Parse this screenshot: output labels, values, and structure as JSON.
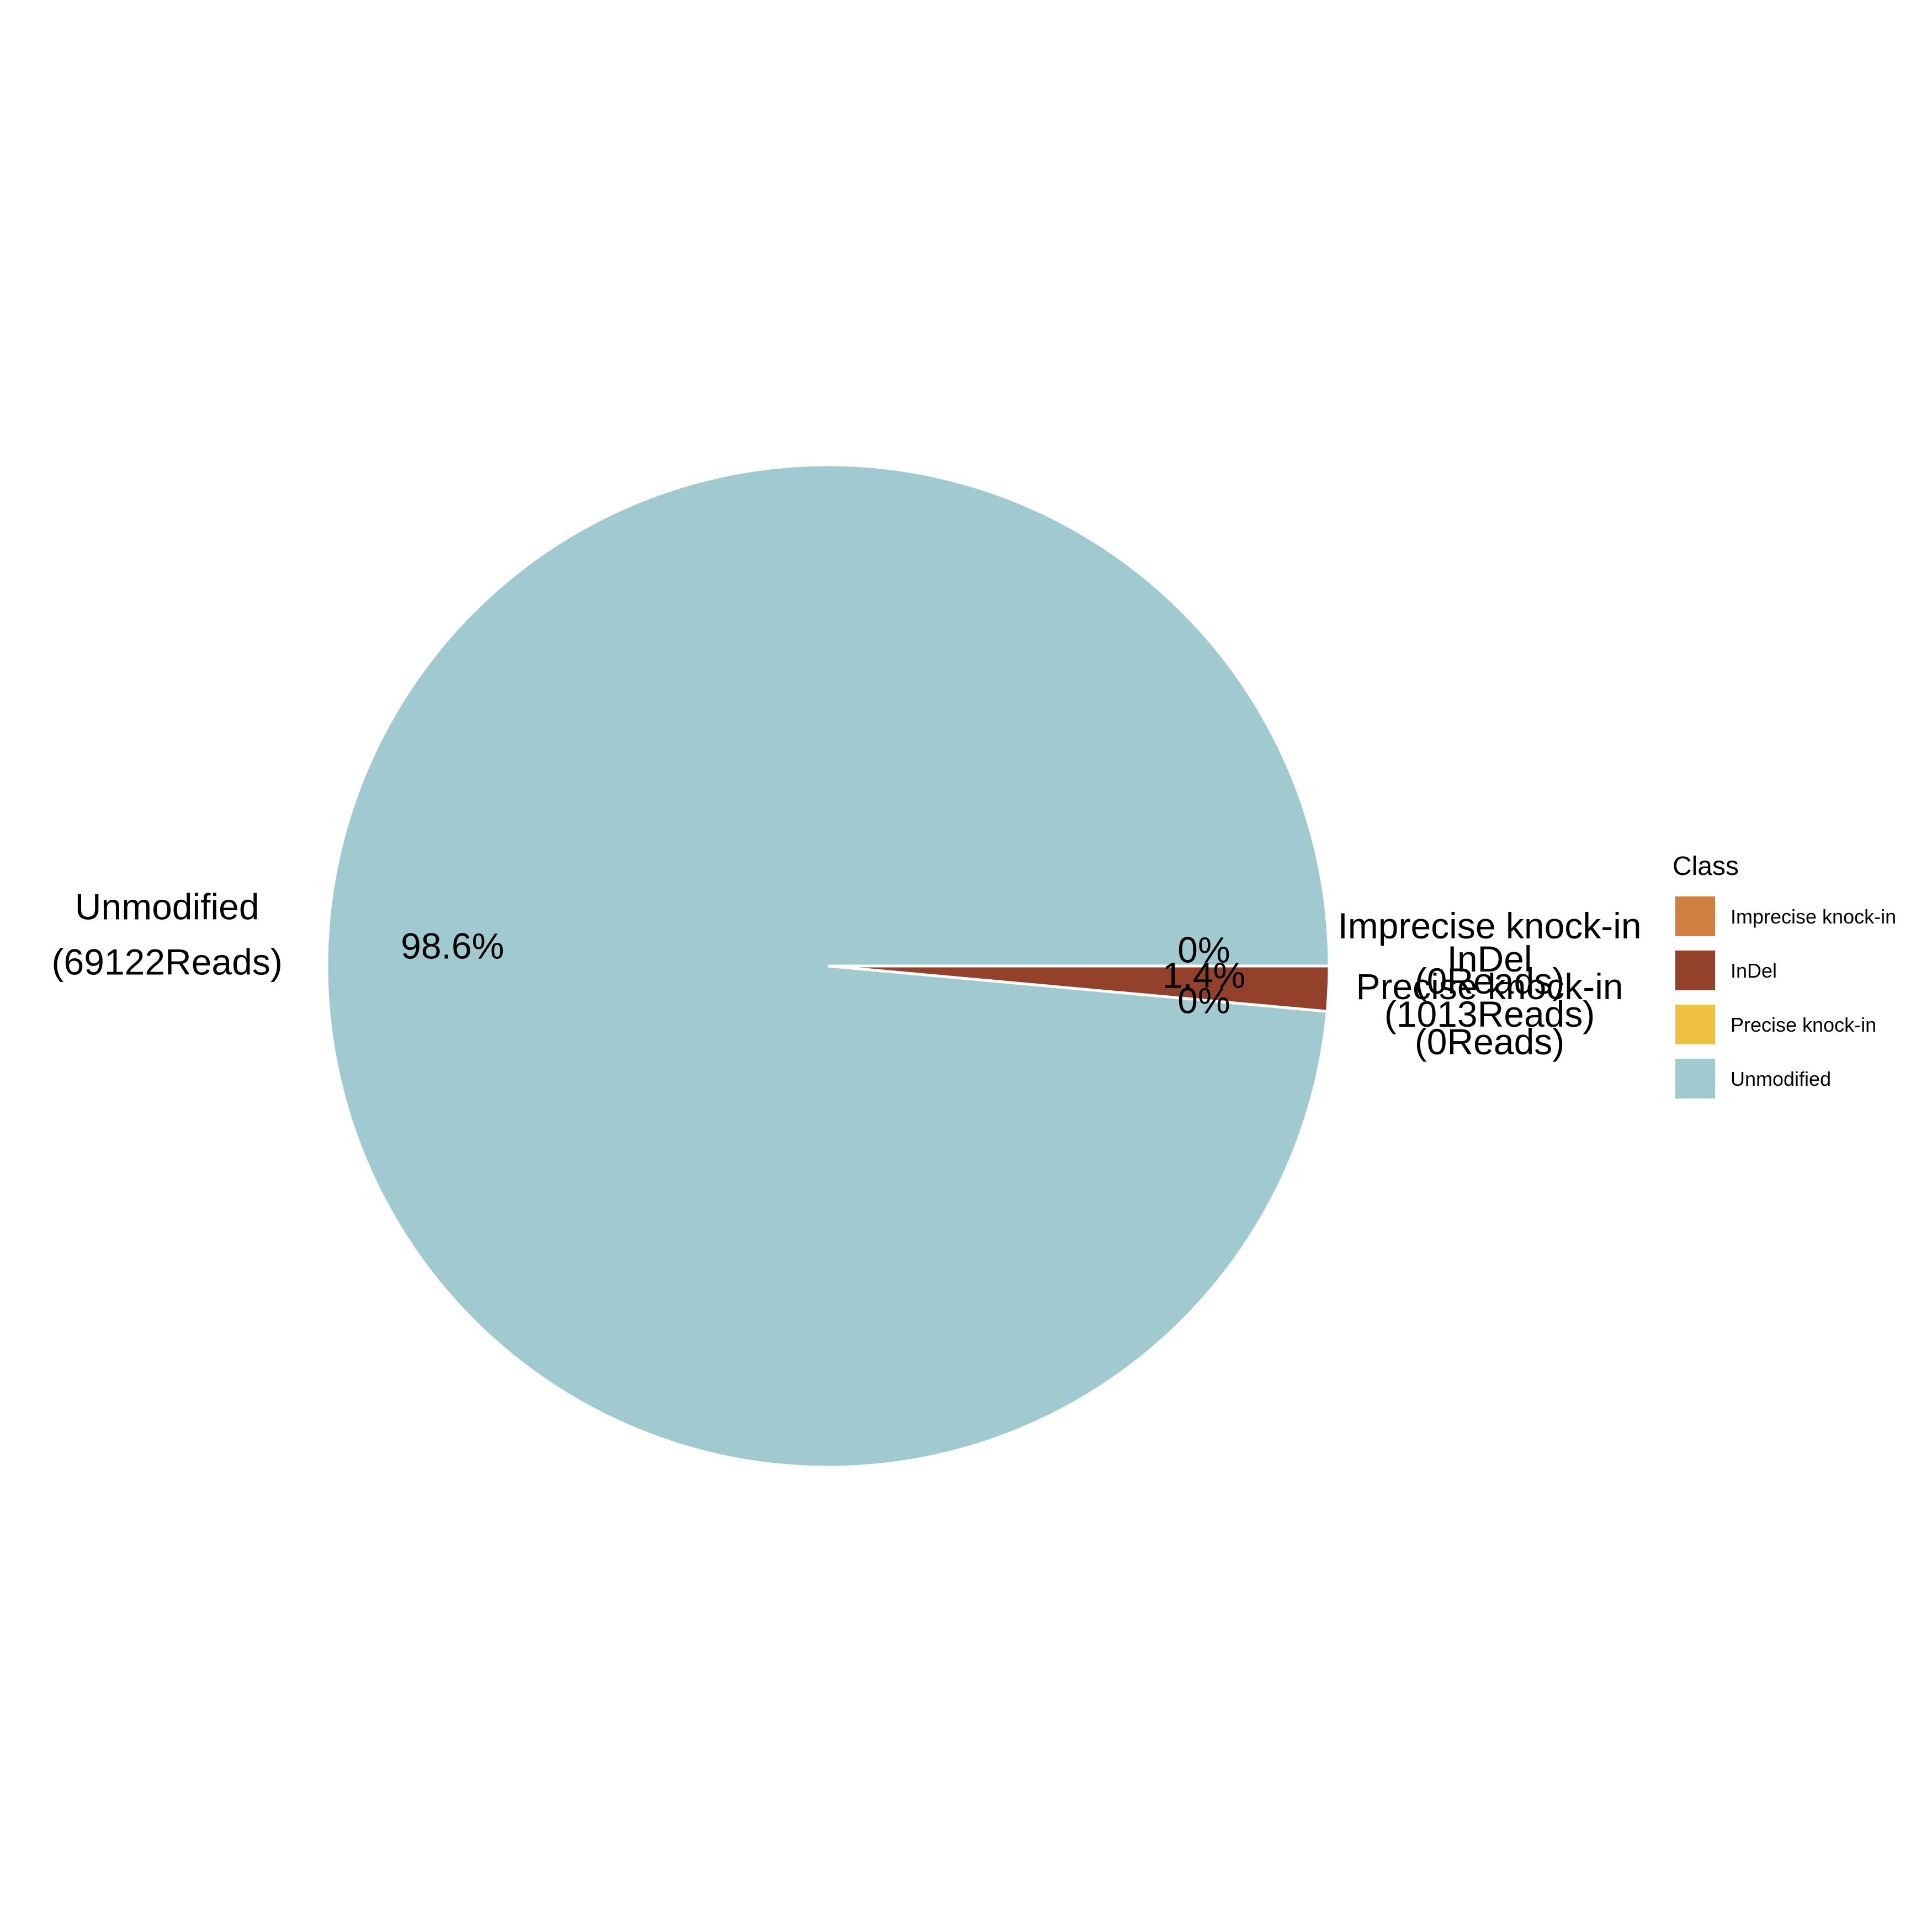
{
  "chart_data": {
    "type": "pie",
    "title": "",
    "legend": {
      "title": "Class",
      "placement": "right",
      "entries": [
        {
          "label": "Imprecise knock-in",
          "color": "#CF7F3F"
        },
        {
          "label": "InDel",
          "color": "#94412B"
        },
        {
          "label": "Precise knock-in",
          "color": "#EEC144"
        },
        {
          "label": "Unmodified",
          "color": "#A0CACF"
        }
      ]
    },
    "slices": [
      {
        "name": "Imprecise knock-in",
        "reads": 0,
        "percent_label": "0%",
        "reads_label": "(0Reads)",
        "color": "#CF7F3F"
      },
      {
        "name": "InDel",
        "reads": 1013,
        "percent_label": "1.4%",
        "reads_label": "(1013Reads)",
        "color": "#94412B"
      },
      {
        "name": "Precise knock-in",
        "reads": 0,
        "percent_label": "0%",
        "reads_label": "(0Reads)",
        "color": "#EEC144"
      },
      {
        "name": "Unmodified",
        "reads": 69122,
        "percent_label": "98.6%",
        "reads_label": "(69122Reads)",
        "color": "#A0CACF"
      }
    ]
  }
}
